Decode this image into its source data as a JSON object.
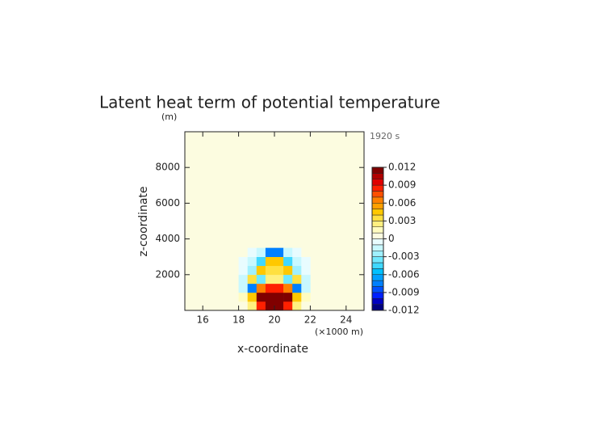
{
  "chart_data": {
    "type": "heatmap",
    "title": "Latent heat term of potential temperature",
    "y_unit": "(m)",
    "time_label": "1920 s",
    "x_label": "x-coordinate",
    "x_unit": "(×1000 m)",
    "y_label": "z-coordinate",
    "xlim": [
      15,
      25
    ],
    "xticks": [
      16,
      18,
      20,
      22,
      24
    ],
    "ylim": [
      0,
      10000
    ],
    "yticks": [
      2000,
      4000,
      6000,
      8000
    ],
    "x": [
      18.25,
      18.75,
      19.25,
      19.75,
      20.25,
      20.75,
      21.25,
      21.75
    ],
    "y": [
      250,
      750,
      1250,
      1750,
      2250,
      2750,
      3250
    ],
    "z": [
      [
        0,
        0.002,
        0.009,
        0.012,
        0.012,
        0.009,
        0.002,
        0
      ],
      [
        0.001,
        0.004,
        0.011,
        0.012,
        0.012,
        0.011,
        0.004,
        0.001
      ],
      [
        -0.002,
        -0.008,
        0.006,
        0.009,
        0.009,
        0.006,
        -0.008,
        -0.002
      ],
      [
        -0.002,
        0.003,
        -0.004,
        0.002,
        0.002,
        -0.004,
        0.003,
        -0.002
      ],
      [
        -0.001,
        -0.003,
        0.004,
        0.003,
        0.003,
        0.004,
        -0.003,
        -0.001
      ],
      [
        -0.001,
        -0.002,
        -0.005,
        0.004,
        0.004,
        -0.005,
        -0.002,
        -0.001
      ],
      [
        0,
        -0.001,
        -0.002,
        -0.008,
        -0.008,
        -0.002,
        -0.001,
        0
      ]
    ],
    "colorbar": {
      "lim": [
        -0.012,
        0.012
      ],
      "ticks": [
        0.012,
        0.009,
        0.006,
        0.003,
        0,
        -0.003,
        -0.006,
        -0.009,
        -0.012
      ],
      "colors": [
        "#000080",
        "#0000c0",
        "#0020ff",
        "#0050ff",
        "#0080ff",
        "#00a0ff",
        "#00c0ff",
        "#40d8ff",
        "#70e8ff",
        "#a0f0ff",
        "#c8f8ff",
        "#e8fcff",
        "#fcfce0",
        "#fffcc0",
        "#fff080",
        "#ffe040",
        "#ffc800",
        "#ffa000",
        "#ff8000",
        "#ff5000",
        "#ff2000",
        "#e00000",
        "#b00000",
        "#800000"
      ]
    }
  }
}
